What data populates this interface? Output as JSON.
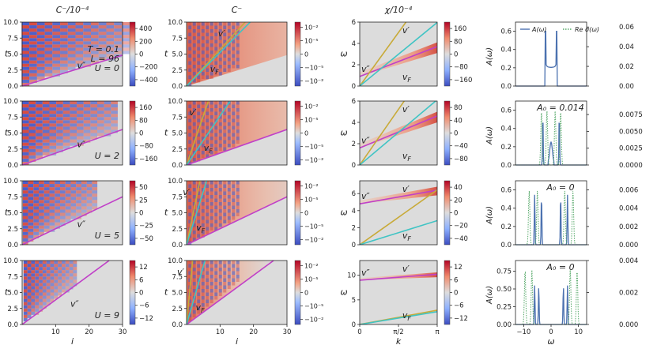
{
  "chart_data": {
    "type": "heatmap",
    "columns": [
      {
        "id": "cminus_lin",
        "title": "C⁻/10⁻⁴",
        "xlabel": "i",
        "ylabel": "t",
        "xlim": [
          0,
          30
        ],
        "ylim": [
          0,
          10
        ],
        "xticks": [
          "10",
          "20",
          "30"
        ],
        "yticks": [
          "0.0",
          "2.5",
          "5.0",
          "7.5",
          "10.0"
        ]
      },
      {
        "id": "cminus_log",
        "title": "C⁻",
        "xlabel": "i",
        "ylabel": "t",
        "xlim": [
          0,
          30
        ],
        "ylim": [
          0,
          10
        ],
        "xticks": [
          "10",
          "20",
          "30"
        ],
        "yticks": [
          "0.0",
          "2.5",
          "5.0",
          "7.5",
          "10.0"
        ]
      },
      {
        "id": "chi",
        "title": "χ/10⁻⁴",
        "xlabel": "k",
        "ylabel": "ω",
        "xlim": [
          0,
          3.1416
        ],
        "xticks": [
          "0",
          "π/2",
          "π"
        ]
      },
      {
        "id": "spectral",
        "title": "",
        "xlabel": "ω",
        "ylabel": "A(ω)",
        "xlim": [
          -13,
          13
        ],
        "xticks": [
          "−10",
          "0",
          "10"
        ],
        "legend": [
          {
            "label": "A(ω)",
            "color": "#4c72b0",
            "style": "solid"
          },
          {
            "label": "Re σ(ω)",
            "color": "#55a868",
            "style": "dotted"
          }
        ]
      }
    ],
    "label_texts": {
      "v2": "v″",
      "v1": "v′",
      "vF": "v_F",
      "vF_sub": "F"
    },
    "rows": [
      {
        "U": 0,
        "U_label": "U = 0",
        "params": [
          "T = 0.1",
          "L = 96",
          "U = 0"
        ],
        "lin_cbar": {
          "ticks": [
            "400",
            "200",
            "0",
            "−200",
            "−400"
          ]
        },
        "log_cbar": {
          "ticks": [
            "10⁻²",
            "10⁻⁵",
            "0",
            "−10⁻⁵",
            "−10⁻²"
          ]
        },
        "chi_ylim": [
          0,
          6
        ],
        "chi_yticks": [
          "0",
          "2",
          "4",
          "6"
        ],
        "chi_cbar": {
          "ticks": [
            "160",
            "80",
            "0",
            "−80",
            "−160"
          ]
        },
        "v2": 6.2,
        "v1": 1.75,
        "vF": 1.9,
        "band_omega": [
          0.9,
          3.7
        ],
        "A_ylim": [
          0,
          0.7
        ],
        "A_yticks": [
          "0.0",
          "0.2",
          "0.4",
          "0.6"
        ],
        "sigma_ylim": [
          0,
          0.065
        ],
        "sigma_yticks": [
          "0.00",
          "0.02",
          "0.04",
          "0.06"
        ],
        "A0_label": "",
        "peaks": [
          -2,
          2
        ],
        "gap": [
          -2,
          2
        ],
        "sigma_peaks": []
      },
      {
        "U": 2,
        "U_label": "U = 2",
        "lin_cbar": {
          "ticks": [
            "160",
            "80",
            "0",
            "−80",
            "−160"
          ]
        },
        "log_cbar": {
          "ticks": [
            "10⁻²",
            "10⁻⁵",
            "0",
            "−10⁻⁵",
            "−10⁻²"
          ]
        },
        "chi_ylim": [
          0,
          6
        ],
        "chi_yticks": [
          "0",
          "2",
          "4",
          "6"
        ],
        "chi_cbar": {
          "ticks": [
            "80",
            "40",
            "0",
            "−40",
            "−80"
          ]
        },
        "v2": 5.4,
        "v1": 0.65,
        "vF": 1.3,
        "band_omega": [
          1.6,
          4.6
        ],
        "A_ylim": [
          0,
          0.7
        ],
        "A_yticks": [
          "0.0",
          "0.2",
          "0.4",
          "0.6"
        ],
        "sigma_ylim": [
          0,
          0.0095
        ],
        "sigma_yticks": [
          "0.0000",
          "0.0025",
          "0.0050",
          "0.0075"
        ],
        "A0_label": "A₀ = 0.014",
        "peaks": [
          -3,
          3
        ],
        "gap": [
          -1,
          1
        ],
        "sigma_peaks": [
          -3.5,
          -1.5,
          1.5,
          3.5
        ]
      },
      {
        "U": 5,
        "U_label": "U = 5",
        "lin_cbar": {
          "ticks": [
            "50",
            "25",
            "0",
            "−25",
            "−50"
          ]
        },
        "log_cbar": {
          "ticks": [
            "10⁻²",
            "10⁻⁵",
            "0",
            "−10⁻⁵",
            "−10⁻²"
          ]
        },
        "chi_ylim": [
          0,
          7.5
        ],
        "chi_yticks": [
          "0",
          "2",
          "4",
          "6"
        ],
        "chi_cbar": {
          "ticks": [
            "40",
            "20",
            "0",
            "−20",
            "−40"
          ]
        },
        "v2": 4.0,
        "v1": 0.4,
        "vF": 0.6,
        "band_omega": [
          4.8,
          6.4
        ],
        "A_ylim": [
          0,
          0.7
        ],
        "A_yticks": [
          "0.0",
          "0.2",
          "0.4",
          "0.6"
        ],
        "sigma_ylim": [
          0,
          0.007
        ],
        "sigma_yticks": [
          "0.000",
          "0.002",
          "0.004",
          "0.006"
        ],
        "A0_label": "A₀ = 0",
        "peaks": [
          -6,
          -3.5,
          3.5,
          6
        ],
        "gap": [
          -2.5,
          2.5
        ],
        "sigma_peaks": [
          -8,
          -5,
          5,
          8
        ]
      },
      {
        "U": 9,
        "U_label": "U = 9",
        "lin_cbar": {
          "ticks": [
            "12",
            "6",
            "0",
            "−6",
            "−12"
          ]
        },
        "log_cbar": {
          "ticks": [
            "10⁻²",
            "10⁻⁵",
            "0",
            "−10⁻⁵",
            "−10⁻²"
          ]
        },
        "chi_ylim": [
          0,
          13
        ],
        "chi_yticks": [
          "0",
          "5",
          "10"
        ],
        "chi_cbar": {
          "ticks": [
            "12",
            "6",
            "0",
            "−6",
            "−12"
          ]
        },
        "v2": 2.6,
        "v1": 0.18,
        "vF": 0.55,
        "band_omega": [
          9.0,
          10.2
        ],
        "A_ylim": [
          0,
          0.9
        ],
        "A_yticks": [
          "0.00",
          "0.25",
          "0.50",
          "0.75"
        ],
        "sigma_ylim": [
          0,
          0.004
        ],
        "sigma_yticks": [
          "0.000",
          "0.002",
          "0.004"
        ],
        "A0_label": "A₀ = 0",
        "peaks": [
          -6,
          -4.5,
          4.5,
          6
        ],
        "gap": [
          -3.5,
          3.5
        ],
        "sigma_peaks": [
          -9.5,
          -7,
          7,
          9.5
        ]
      }
    ],
    "colors": {
      "v2": "#c040c8",
      "v1": "#c8aa38",
      "vF": "#40c4c4",
      "bg": "#dcdcdc",
      "A": "#4c72b0",
      "sigma": "#55a868"
    }
  }
}
